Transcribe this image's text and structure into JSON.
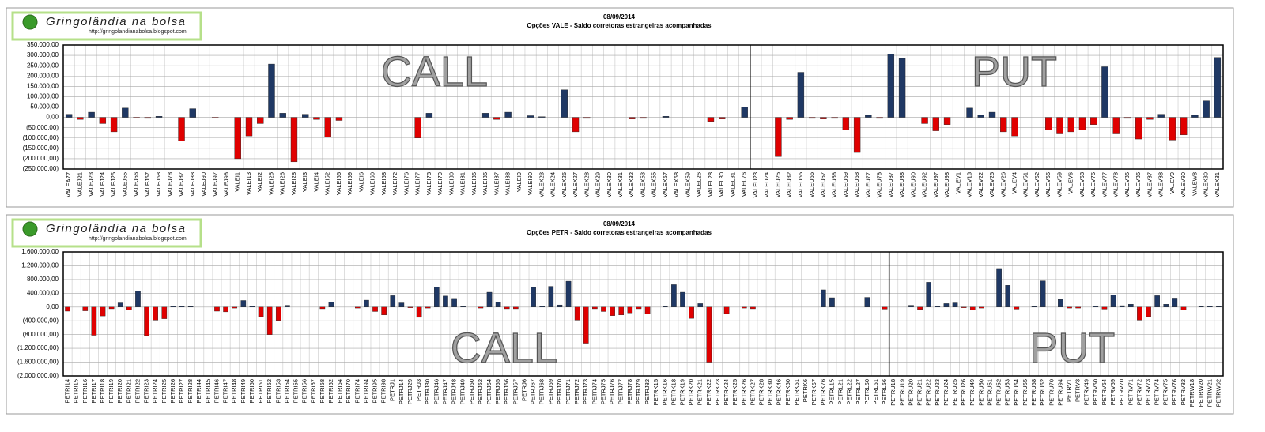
{
  "chart_data": [
    {
      "type": "bar",
      "brand": "Gringolândia na bolsa",
      "brand_url": "http://gringolandianabolsa.blogspot.com",
      "title": "08/09/2014",
      "subtitle": "Opções VALE - Saldo corretoras estrangeiras acompanhadas",
      "annotations": [
        "CALL",
        "PUT"
      ],
      "positive_color": "#1f3864",
      "negative_color": "#e00000",
      "grid": true,
      "ylim": [
        -250000,
        350000
      ],
      "yticks": [
        {
          "value": -250000,
          "label": "(250.000,00)"
        },
        {
          "value": -200000,
          "label": "(200.000,00)"
        },
        {
          "value": -150000,
          "label": "(150.000,00)"
        },
        {
          "value": -100000,
          "label": "(100.000,00)"
        },
        {
          "value": -50000,
          "label": "(50.000,00)"
        },
        {
          "value": 0,
          "label": "0,00"
        },
        {
          "value": 50000,
          "label": "50.000,00"
        },
        {
          "value": 100000,
          "label": "100.000,00"
        },
        {
          "value": 150000,
          "label": "150.000,00"
        },
        {
          "value": 200000,
          "label": "200.000,00"
        },
        {
          "value": 250000,
          "label": "250.000,00"
        },
        {
          "value": 300000,
          "label": "300.000,00"
        },
        {
          "value": 350000,
          "label": "350.000,00"
        }
      ],
      "divider_after": 61,
      "categories": [
        "VALEA77",
        "VALEJ21",
        "VALEJ23",
        "VALEJ24",
        "VALEJ25",
        "VALEJ55",
        "VALEJ56",
        "VALEJ57",
        "VALEJ58",
        "VALEJ78",
        "VALEJ87",
        "VALEJ88",
        "VALEJ90",
        "VALEJ97",
        "VALEJ98",
        "VALEI1",
        "VALEI13",
        "VALEI2",
        "VALEI25",
        "VALEI26",
        "VALEI28",
        "VALEI3",
        "VALEI4",
        "VALEI52",
        "VALEI56",
        "VALEI59",
        "VALEI6",
        "VALEI60",
        "VALEI68",
        "VALEI72",
        "VALEI76",
        "VALEI77",
        "VALEI78",
        "VALEI79",
        "VALEI80",
        "VALEI81",
        "VALEI85",
        "VALEI86",
        "VALEI87",
        "VALEI88",
        "VALEI9",
        "VALEI90",
        "VALEX23",
        "VALEX24",
        "VALEX26",
        "VALEX27",
        "VALEX28",
        "VALEX29",
        "VALEX30",
        "VALEX31",
        "VALEX32",
        "VALEX53",
        "VALEX55",
        "VALEX57",
        "VALEX58",
        "VALEX59",
        "VALEL26",
        "VALEL28",
        "VALEL30",
        "VALEL31",
        "VALEL76",
        "VALEU23",
        "VALEU24",
        "VALEU25",
        "VALEU32",
        "VALEU55",
        "VALEU56",
        "VALEU57",
        "VALEU58",
        "VALEU59",
        "VALEU68",
        "VALEU77",
        "VALEU78",
        "VALEU87",
        "VALEU88",
        "VALEU90",
        "VALEU92",
        "VALEU97",
        "VALEU98",
        "VALEV1",
        "VALEV13",
        "VALEV22",
        "VALEV25",
        "VALEV26",
        "VALEV4",
        "VALEV51",
        "VALEV52",
        "VALEV56",
        "VALEV59",
        "VALEV6",
        "VALEV68",
        "VALEV76",
        "VALEV77",
        "VALEV78",
        "VALEV85",
        "VALEV86",
        "VALEV87",
        "VALEV88",
        "VALEV9",
        "VALEV90",
        "VALEW8",
        "VALEX30",
        "VALEX31"
      ],
      "values": [
        15000,
        -10000,
        25000,
        -30000,
        -70000,
        45000,
        -3000,
        -5000,
        5000,
        0,
        -115000,
        42000,
        0,
        -3000,
        0,
        -200000,
        -90000,
        -30000,
        258000,
        20000,
        -215000,
        15000,
        -10000,
        -95000,
        -15000,
        0,
        0,
        0,
        0,
        0,
        0,
        -100000,
        20000,
        0,
        0,
        0,
        0,
        20000,
        -10000,
        25000,
        0,
        8000,
        3000,
        0,
        133000,
        -70000,
        -5000,
        0,
        0,
        0,
        -8000,
        -5000,
        0,
        5000,
        0,
        0,
        0,
        -20000,
        -8000,
        0,
        50000,
        0,
        0,
        -190000,
        -10000,
        218000,
        -5000,
        -8000,
        -5000,
        -60000,
        -170000,
        10000,
        -5000,
        305000,
        285000,
        0,
        -30000,
        -65000,
        -35000,
        0,
        45000,
        10000,
        25000,
        -70000,
        -90000,
        0,
        0,
        -60000,
        -80000,
        -70000,
        -60000,
        -35000,
        245000,
        -80000,
        -5000,
        -105000,
        -10000,
        15000,
        -110000,
        -85000,
        10000,
        80000,
        290000
      ]
    },
    {
      "type": "bar",
      "brand": "Gringolândia na bolsa",
      "brand_url": "http://gringolandianabolsa.blogspot.com",
      "title": "08/09/2014",
      "subtitle": "Opções PETR - Saldo corretoras estrangeiras acompanhadas",
      "annotations": [
        "CALL",
        "PUT"
      ],
      "positive_color": "#1f3864",
      "negative_color": "#e00000",
      "grid": true,
      "ylim": [
        -2000000,
        1600000
      ],
      "yticks": [
        {
          "value": -2000000,
          "label": "(2.000.000,00)"
        },
        {
          "value": -1600000,
          "label": "(1.600.000,00)"
        },
        {
          "value": -1200000,
          "label": "(1.200.000,00)"
        },
        {
          "value": -800000,
          "label": "(800.000,00)"
        },
        {
          "value": -400000,
          "label": "(400.000,00)"
        },
        {
          "value": 0,
          "label": "0,00"
        },
        {
          "value": 400000,
          "label": "400.000,00"
        },
        {
          "value": 800000,
          "label": "800.000,00"
        },
        {
          "value": 1200000,
          "label": "1.200.000,00"
        },
        {
          "value": 1600000,
          "label": "1.600.000,00"
        }
      ],
      "divider_after": 94,
      "categories": [
        "PETRI14",
        "PETRI15",
        "PETRI16",
        "PETRI17",
        "PETRI18",
        "PETRI19",
        "PETRI20",
        "PETRI21",
        "PETRI22",
        "PETRI23",
        "PETRI24",
        "PETRI25",
        "PETRI26",
        "PETRI27",
        "PETRI28",
        "PETRI44",
        "PETRI45",
        "PETRI46",
        "PETRI47",
        "PETRI48",
        "PETRI49",
        "PETRI50",
        "PETRI51",
        "PETRI52",
        "PETRI53",
        "PETRI54",
        "PETRI55",
        "PETRI56",
        "PETRI57",
        "PETRI58",
        "PETRI62",
        "PETRI64",
        "PETRI70",
        "PETRI74",
        "PETRI94",
        "PETRI95",
        "PETRI98",
        "PETRJ1",
        "PETRJ14",
        "PETRJ29",
        "PETRJ3",
        "PETRJ30",
        "PETRJ46",
        "PETRJ47",
        "PETRJ48",
        "PETRJ49",
        "PETRJ50",
        "PETRJ52",
        "PETRJ54",
        "PETRJ55",
        "PETRJ56",
        "PETRJ57",
        "PETRJ6",
        "PETRJ67",
        "PETRJ68",
        "PETRJ69",
        "PETRJ70",
        "PETRJ71",
        "PETRJ72",
        "PETRJ73",
        "PETRJ74",
        "PETRJ75",
        "PETRJ76",
        "PETRJ77",
        "PETRJ78",
        "PETRJ79",
        "PETRJ82",
        "PETRK15",
        "PETRK16",
        "PETRK18",
        "PETRK19",
        "PETRK20",
        "PETRK21",
        "PETRK22",
        "PETRK23",
        "PETRK24",
        "PETRK25",
        "PETRK26",
        "PETRK27",
        "PETRK28",
        "PETRK30",
        "PETRK46",
        "PETRK50",
        "PETRK51",
        "PETRK6",
        "PETRK67",
        "PETRK76",
        "PETRL15",
        "PETRL21",
        "PETRL22",
        "PETRL27",
        "PETRL60",
        "PETRL61",
        "PETRL66",
        "PETRU18",
        "PETRU19",
        "PETRU20",
        "PETRU21",
        "PETRU22",
        "PETRU23",
        "PETRU24",
        "PETRU25",
        "PETRU26",
        "PETRU49",
        "PETRU50",
        "PETRU51",
        "PETRU52",
        "PETRU53",
        "PETRU54",
        "PETRU55",
        "PETRU58",
        "PETRU62",
        "PETRU70",
        "PETRU94",
        "PETRV1",
        "PETRV3",
        "PETRV49",
        "PETRV50",
        "PETRV54",
        "PETRV69",
        "PETRV70",
        "PETRV71",
        "PETRV72",
        "PETRV73",
        "PETRV74",
        "PETRV75",
        "PETRV76",
        "PETRV82",
        "PETRW18",
        "PETRW20",
        "PETRW21",
        "PETRW62"
      ],
      "values": [
        -120000,
        0,
        -110000,
        -820000,
        -260000,
        -50000,
        120000,
        -80000,
        470000,
        -830000,
        -380000,
        -340000,
        30000,
        30000,
        20000,
        0,
        0,
        -120000,
        -140000,
        -30000,
        190000,
        30000,
        -280000,
        -800000,
        -390000,
        50000,
        0,
        0,
        0,
        -50000,
        150000,
        0,
        0,
        -30000,
        200000,
        -130000,
        -230000,
        330000,
        120000,
        -20000,
        -300000,
        -30000,
        580000,
        320000,
        250000,
        20000,
        0,
        -30000,
        430000,
        150000,
        -50000,
        -50000,
        0,
        570000,
        30000,
        600000,
        60000,
        750000,
        -380000,
        -1050000,
        -50000,
        -130000,
        -250000,
        -230000,
        -170000,
        -50000,
        -200000,
        0,
        20000,
        650000,
        430000,
        -330000,
        100000,
        -1600000,
        0,
        -190000,
        0,
        -30000,
        -50000,
        0,
        0,
        0,
        0,
        0,
        0,
        0,
        500000,
        270000,
        0,
        0,
        0,
        280000,
        0,
        -60000,
        0,
        0,
        50000,
        -70000,
        720000,
        30000,
        100000,
        120000,
        -20000,
        -80000,
        -30000,
        0,
        1120000,
        630000,
        -60000,
        0,
        20000,
        760000,
        0,
        220000,
        -30000,
        -30000,
        0,
        30000,
        -60000,
        350000,
        40000,
        80000,
        -380000,
        -280000,
        330000,
        80000,
        260000,
        -80000,
        0,
        20000,
        30000,
        20000
      ]
    }
  ]
}
